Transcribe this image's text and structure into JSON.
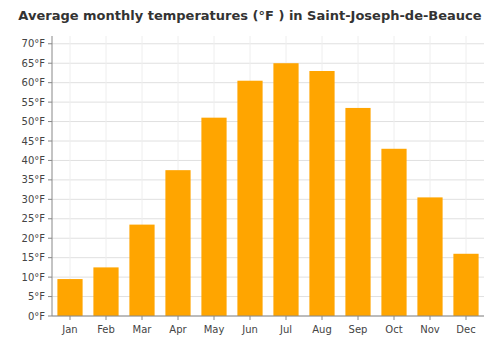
{
  "chart_data": {
    "type": "bar",
    "title": "Average monthly temperatures (°F ) in Saint-Joseph-de-Beauce",
    "categories": [
      "Jan",
      "Feb",
      "Mar",
      "Apr",
      "May",
      "Jun",
      "Jul",
      "Aug",
      "Sep",
      "Oct",
      "Nov",
      "Dec"
    ],
    "values": [
      9.5,
      12.5,
      23.5,
      37.5,
      51.0,
      60.5,
      65.0,
      63.0,
      53.5,
      43.0,
      30.5,
      16.0
    ],
    "color": "#FFA500",
    "ylim": [
      0,
      72
    ],
    "yticks": [
      {
        "value": 0,
        "label": "0°F"
      },
      {
        "value": 5,
        "label": "5°F"
      },
      {
        "value": 10,
        "label": "10°F"
      },
      {
        "value": 15,
        "label": "15°F"
      },
      {
        "value": 20,
        "label": "20°F"
      },
      {
        "value": 25,
        "label": "25°F"
      },
      {
        "value": 30,
        "label": "30°F"
      },
      {
        "value": 35,
        "label": "35°F"
      },
      {
        "value": 40,
        "label": "40°F"
      },
      {
        "value": 45,
        "label": "45°F"
      },
      {
        "value": 50,
        "label": "50°F"
      },
      {
        "value": 55,
        "label": "55°F"
      },
      {
        "value": 60,
        "label": "60°F"
      },
      {
        "value": 65,
        "label": "65°F"
      },
      {
        "value": 70,
        "label": "70°F"
      }
    ],
    "grid": true
  }
}
